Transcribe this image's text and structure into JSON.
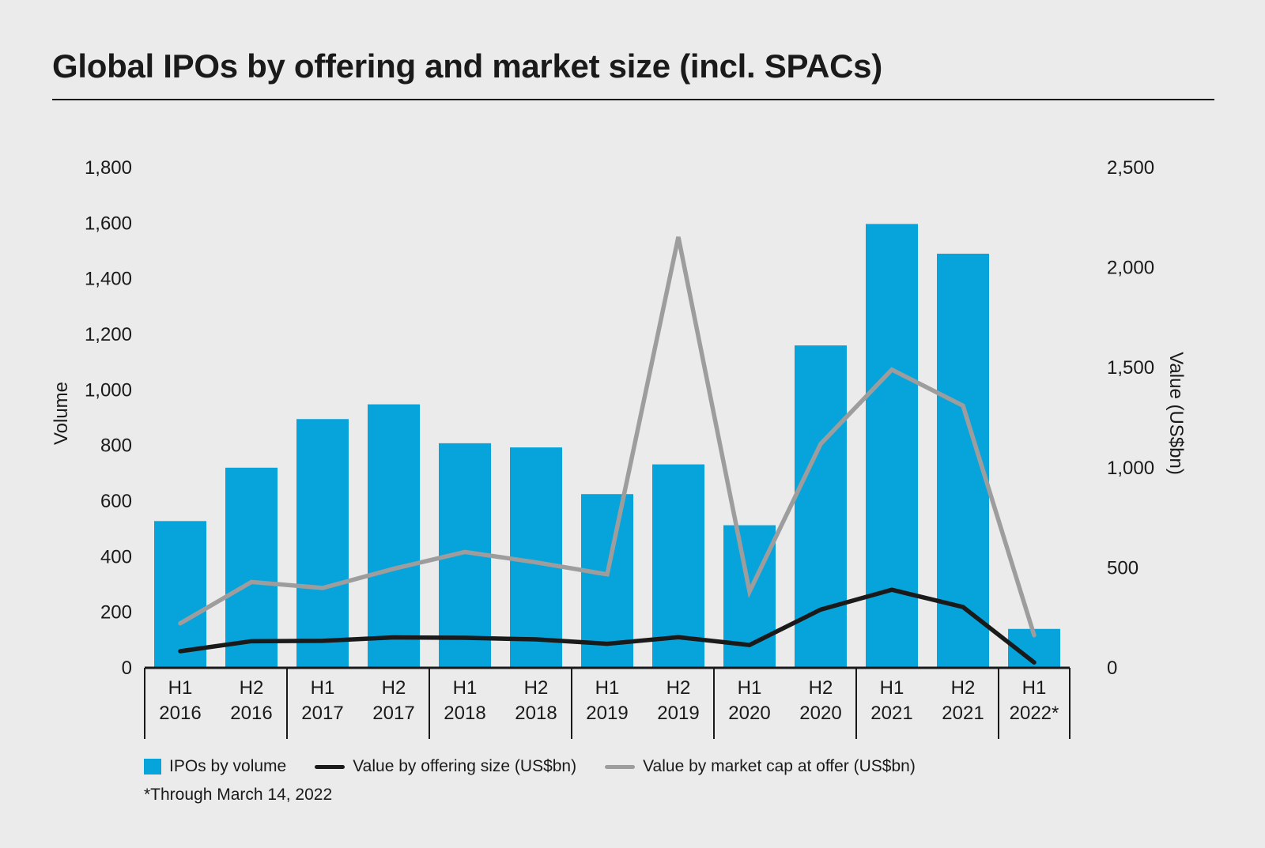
{
  "title": "Global IPOs by offering and market size (incl. SPACs)",
  "footnote": "*Through March 14, 2022",
  "colors": {
    "bars": "#07a4db",
    "offering_line": "#1a1a1a",
    "market_cap_line": "#9d9d9d",
    "axis": "#1a1a1a"
  },
  "chart_data": {
    "type": "bar",
    "title": "Global IPOs by offering and market size (incl. SPACs)",
    "categories": [
      [
        "H1",
        "2016"
      ],
      [
        "H2",
        "2016"
      ],
      [
        "H1",
        "2017"
      ],
      [
        "H2",
        "2017"
      ],
      [
        "H1",
        "2018"
      ],
      [
        "H2",
        "2018"
      ],
      [
        "H1",
        "2019"
      ],
      [
        "H2",
        "2019"
      ],
      [
        "H1",
        "2020"
      ],
      [
        "H2",
        "2020"
      ],
      [
        "H1",
        "2021"
      ],
      [
        "H2",
        "2021"
      ],
      [
        "H1",
        "2022*"
      ]
    ],
    "ylabel": "Volume",
    "y2label": "Value (US$bn)",
    "ylim": [
      0,
      1800
    ],
    "y2lim": [
      0,
      2500
    ],
    "yticks": [
      "0",
      "200",
      "400",
      "600",
      "800",
      "1,000",
      "1,200",
      "1,400",
      "1,600",
      "1,800"
    ],
    "y2ticks": [
      "0",
      "500",
      "1,000",
      "1,500",
      "2,000",
      "2,500"
    ],
    "series": [
      {
        "name": "IPOs by volume",
        "type": "bar",
        "axis": "left",
        "values": [
          528,
          720,
          895,
          948,
          808,
          793,
          625,
          732,
          513,
          1160,
          1597,
          1490,
          140
        ]
      },
      {
        "name": "Value by offering size (US$bn)",
        "type": "line",
        "axis": "right",
        "values": [
          83,
          133,
          135,
          152,
          150,
          142,
          120,
          153,
          114,
          291,
          390,
          304,
          27
        ]
      },
      {
        "name": "Value by market cap at offer (US$bn)",
        "type": "line",
        "axis": "right",
        "values": [
          222,
          429,
          399,
          495,
          579,
          527,
          467,
          2153,
          381,
          1119,
          1490,
          1310,
          163
        ]
      }
    ],
    "legend_position": "bottom-left"
  }
}
